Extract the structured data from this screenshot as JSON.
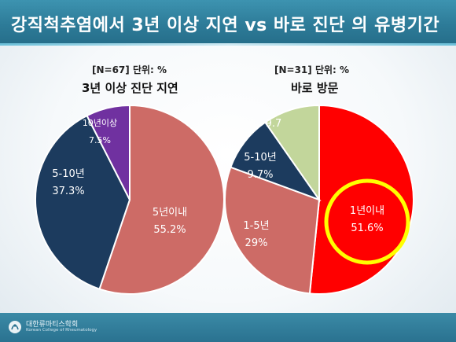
{
  "header": {
    "title": "강직척추염에서 3년 이상 지연 vs 바로 진단 의 유병기간"
  },
  "footer": {
    "org_name": "대한류마티스학회",
    "org_sub": "Korean College of Rheumatology"
  },
  "chart_data": [
    {
      "type": "pie",
      "meta": "[N=67] 단위: %",
      "title": "3년 이상 진단 지연",
      "slices": [
        {
          "name": "5년이내",
          "value": 55.2,
          "label": "55.2%",
          "color": "#cd6b66"
        },
        {
          "name": "5-10년",
          "value": 37.3,
          "label": "37.3%",
          "color": "#1c3b5e"
        },
        {
          "name": "10년이상",
          "value": 7.5,
          "label": "7.5%",
          "color": "#7031a0"
        }
      ]
    },
    {
      "type": "pie",
      "meta": "[N=31] 단위: %",
      "title": "바로 방문",
      "highlight": "1년이내",
      "slices": [
        {
          "name": "1년이내",
          "value": 51.6,
          "label": "51.6%",
          "color": "#ff0000"
        },
        {
          "name": "1-5년",
          "value": 29,
          "label": "29%",
          "color": "#cd6b66"
        },
        {
          "name": "5-10년",
          "value": 9.7,
          "label": "9.7%",
          "color": "#1c3b5e"
        },
        {
          "name": "",
          "value": 9.7,
          "label": "9.7",
          "color": "#c2d69b"
        }
      ]
    }
  ]
}
